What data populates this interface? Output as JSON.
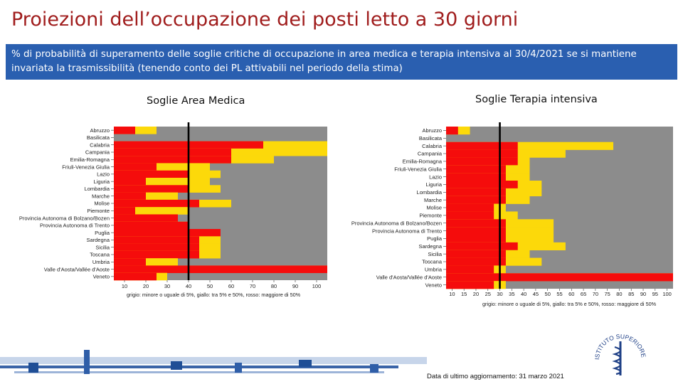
{
  "title": "Proiezioni dell’occupazione dei posti letto a 30 giorni",
  "banner_text": "% di probabilità di superamento delle soglie critiche di occupazione in area medica e terapia intensiva al 30/4/2021  se si mantiene invariata la trasmissibilità (tenendo conto dei PL attivabili nel periodo della stima)",
  "footer": {
    "update_text": "Data di ultimo aggiornamento: 31 marzo 2021"
  },
  "logo": {
    "text": "ISTITUTO SUPERIORE DI SANITÀ"
  },
  "colors": {
    "red": "#f50c0c",
    "yellow": "#fcd90a",
    "grey": "#8c8c8c",
    "banner": "#2a5fb0",
    "title": "#a01d1d"
  },
  "chart_data": [
    {
      "type": "heatmap",
      "title": "Soglie Area Medica",
      "legend": "grigio: minore o uguale di 5%, giallo: tra 5% e 50%, rosso: maggiore di 50%",
      "xlim": [
        5,
        105
      ],
      "x_ticks": [
        "10",
        "20",
        "30",
        "40",
        "50",
        "60",
        "70",
        "80",
        "90",
        "100"
      ],
      "threshold_x": 40,
      "regions": [
        "Abruzzo",
        "Basilicata",
        "Calabria",
        "Campania",
        "Emilia-Romagna",
        "Friuli-Venezia Giulia",
        "Lazio",
        "Liguria",
        "Lombardia",
        "Marche",
        "Molise",
        "Piemonte",
        "Provincia Autonoma di Bolzano/Bozen",
        "Provincia Autonoma di Trento",
        "Puglia",
        "Sardegna",
        "Sicilia",
        "Toscana",
        "Umbria",
        "Valle d'Aosta/Vallée d'Aoste",
        "Veneto"
      ],
      "red_until": [
        15,
        5,
        75,
        60,
        60,
        25,
        40,
        20,
        40,
        20,
        45,
        15,
        35,
        40,
        55,
        45,
        45,
        45,
        20,
        105,
        25
      ],
      "yellow_until": [
        25,
        5,
        105,
        105,
        80,
        50,
        55,
        50,
        55,
        35,
        60,
        40,
        35,
        40,
        55,
        55,
        55,
        55,
        35,
        105,
        30
      ]
    },
    {
      "type": "heatmap",
      "title": "Soglie Terapia intensiva",
      "legend": "grigio: minore o uguale di 5%, giallo: tra 5% e 50%, rosso: maggiore di 50%",
      "xlim": [
        7.5,
        102.5
      ],
      "x_ticks": [
        "10",
        "15",
        "20",
        "25",
        "30",
        "35",
        "40",
        "45",
        "50",
        "55",
        "60",
        "65",
        "70",
        "75",
        "80",
        "85",
        "90",
        "95",
        "100"
      ],
      "threshold_x": 30,
      "regions": [
        "Abruzzo",
        "Basilicata",
        "Calabria",
        "Campania",
        "Emilia-Romagna",
        "Friuli-Venezia Giulia",
        "Lazio",
        "Liguria",
        "Lombardia",
        "Marche",
        "Molise",
        "Piemonte",
        "Provincia Autonoma di Bolzano/Bozen",
        "Provincia Autonoma di Trento",
        "Puglia",
        "Sardegna",
        "Sicilia",
        "Toscana",
        "Umbria",
        "Valle d'Aosta/Vallée d'Aoste",
        "Veneto"
      ],
      "red_until": [
        12.5,
        7.5,
        37.5,
        37.5,
        37.5,
        32.5,
        32.5,
        37.5,
        32.5,
        32.5,
        27.5,
        27.5,
        32.5,
        32.5,
        32.5,
        37.5,
        32.5,
        32.5,
        27.5,
        102.5,
        27.5
      ],
      "yellow_until": [
        17.5,
        7.5,
        77.5,
        57.5,
        42.5,
        42.5,
        42.5,
        47.5,
        47.5,
        42.5,
        32.5,
        37.5,
        52.5,
        52.5,
        52.5,
        57.5,
        42.5,
        47.5,
        32.5,
        102.5,
        32.5
      ]
    }
  ]
}
